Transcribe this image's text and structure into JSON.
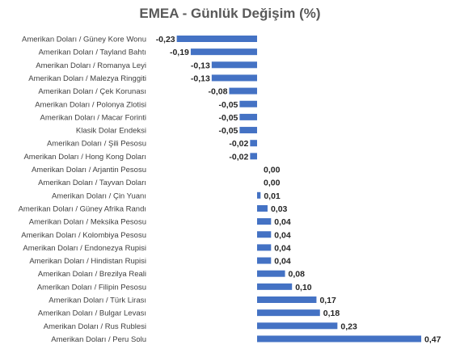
{
  "chart_data": {
    "type": "bar",
    "orientation": "horizontal",
    "title": "EMEA - Günlük Değişim (%)",
    "bar_color": "#4472C4",
    "categories": [
      "Amerikan Doları / Güney Kore Wonu",
      "Amerikan Doları / Tayland Bahtı",
      "Amerikan Doları / Romanya Leyi",
      "Amerikan Doları / Malezya Ringgiti",
      "Amerikan Doları / Çek Korunası",
      "Amerikan Doları / Polonya Zlotisi",
      "Amerikan Doları / Macar Forinti",
      "Klasik Dolar Endeksi",
      "Amerikan Doları / Şili Pesosu",
      "Amerikan Doları / Hong Kong Doları",
      "Amerikan Doları / Arjantin Pesosu",
      "Amerikan Doları / Tayvan Doları",
      "Amerikan Doları / Çin Yuanı",
      "Amerikan Doları / Güney Afrika Randı",
      "Amerikan Doları / Meksika Pesosu",
      "Amerikan Doları / Kolombiya Pesosu",
      "Amerikan Doları / Endonezya Rupisi",
      "Amerikan Doları / Hindistan Rupisi",
      "Amerikan Doları / Brezilya Reali",
      "Amerikan Doları / Filipin Pesosu",
      "Amerikan Doları / Türk Lirası",
      "Amerikan Doları / Bulgar Levası",
      "Amerikan Doları / Rus Rublesi",
      "Amerikan Doları / Peru Solu"
    ],
    "values": [
      -0.23,
      -0.19,
      -0.13,
      -0.13,
      -0.08,
      -0.05,
      -0.05,
      -0.05,
      -0.02,
      -0.02,
      0.0,
      0.0,
      0.01,
      0.03,
      0.04,
      0.04,
      0.04,
      0.04,
      0.08,
      0.1,
      0.17,
      0.18,
      0.23,
      0.47
    ],
    "value_labels": [
      "-0,23",
      "-0,19",
      "-0,13",
      "-0,13",
      "-0,08",
      "-0,05",
      "-0,05",
      "-0,05",
      "-0,02",
      "-0,02",
      "0,00",
      "0,00",
      "0,01",
      "0,03",
      "0,04",
      "0,04",
      "0,04",
      "0,04",
      "0,08",
      "0,10",
      "0,17",
      "0,18",
      "0,23",
      "0,47"
    ],
    "xlim": [
      -0.23,
      0.47
    ],
    "grid": false,
    "legend": "none"
  }
}
